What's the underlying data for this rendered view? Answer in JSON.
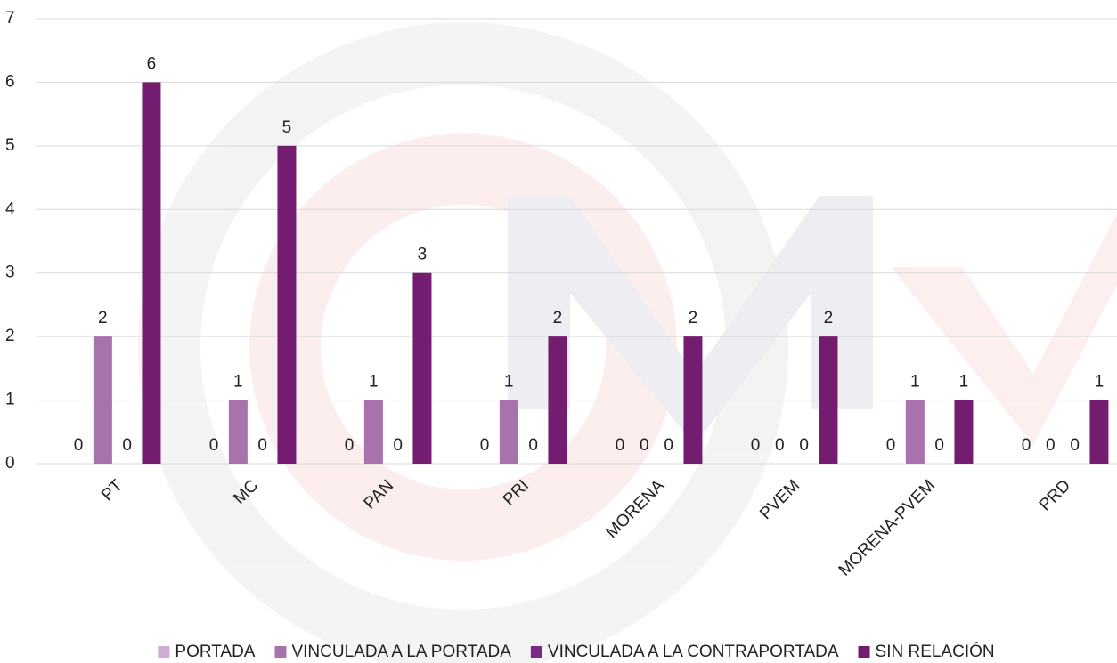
{
  "chart_data": {
    "type": "bar",
    "categories": [
      "PT",
      "MC",
      "PAN",
      "PRI",
      "MORENA",
      "PVEM",
      "MORENA-PVEM",
      "PRD"
    ],
    "series": [
      {
        "name": "PORTADA",
        "color": "#cdaed3",
        "values": [
          0,
          0,
          0,
          0,
          0,
          0,
          0,
          0
        ]
      },
      {
        "name": "VINCULADA A LA PORTADA",
        "color": "#a872ad",
        "values": [
          2,
          1,
          1,
          1,
          0,
          0,
          1,
          0
        ]
      },
      {
        "name": "VINCULADA A LA CONTRAPORTADA",
        "color": "#7b2a87",
        "values": [
          0,
          0,
          0,
          0,
          0,
          0,
          0,
          0
        ]
      },
      {
        "name": "SIN RELACIÓN",
        "color": "#731c70",
        "values": [
          6,
          5,
          3,
          2,
          2,
          2,
          1,
          1
        ]
      }
    ],
    "ylim": [
      0,
      7
    ],
    "yticks": [
      0,
      1,
      2,
      3,
      4,
      5,
      6,
      7
    ],
    "grid": true,
    "legend": "bottom"
  }
}
